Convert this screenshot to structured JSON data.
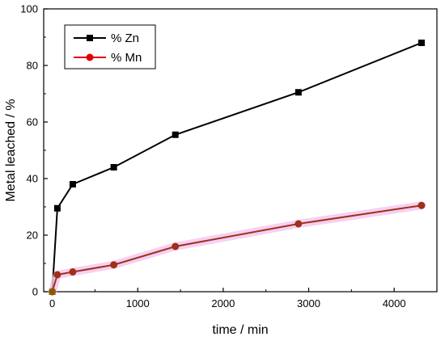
{
  "chart_data": {
    "type": "line",
    "title": "",
    "xlabel": "time / min",
    "ylabel": "Metal leached / %",
    "xlim": [
      -100,
      4500
    ],
    "ylim": [
      0,
      100
    ],
    "xticks": [
      0,
      1000,
      2000,
      3000,
      4000
    ],
    "yticks": [
      0,
      20,
      40,
      60,
      80,
      100
    ],
    "grid": false,
    "legend": {
      "position": "top-left"
    },
    "series": [
      {
        "name": "% Zn",
        "color": "#000000",
        "marker": "square",
        "x": [
          0,
          60,
          240,
          720,
          1440,
          2880,
          4320
        ],
        "y": [
          0,
          29.5,
          38,
          44,
          55.5,
          70.5,
          88
        ]
      },
      {
        "name": "% Mn",
        "color": "#e00000",
        "marker": "circle",
        "x": [
          0,
          60,
          240,
          720,
          1440,
          2880,
          4320
        ],
        "y": [
          0,
          6,
          7,
          9.5,
          16,
          24,
          30.5
        ]
      }
    ]
  }
}
